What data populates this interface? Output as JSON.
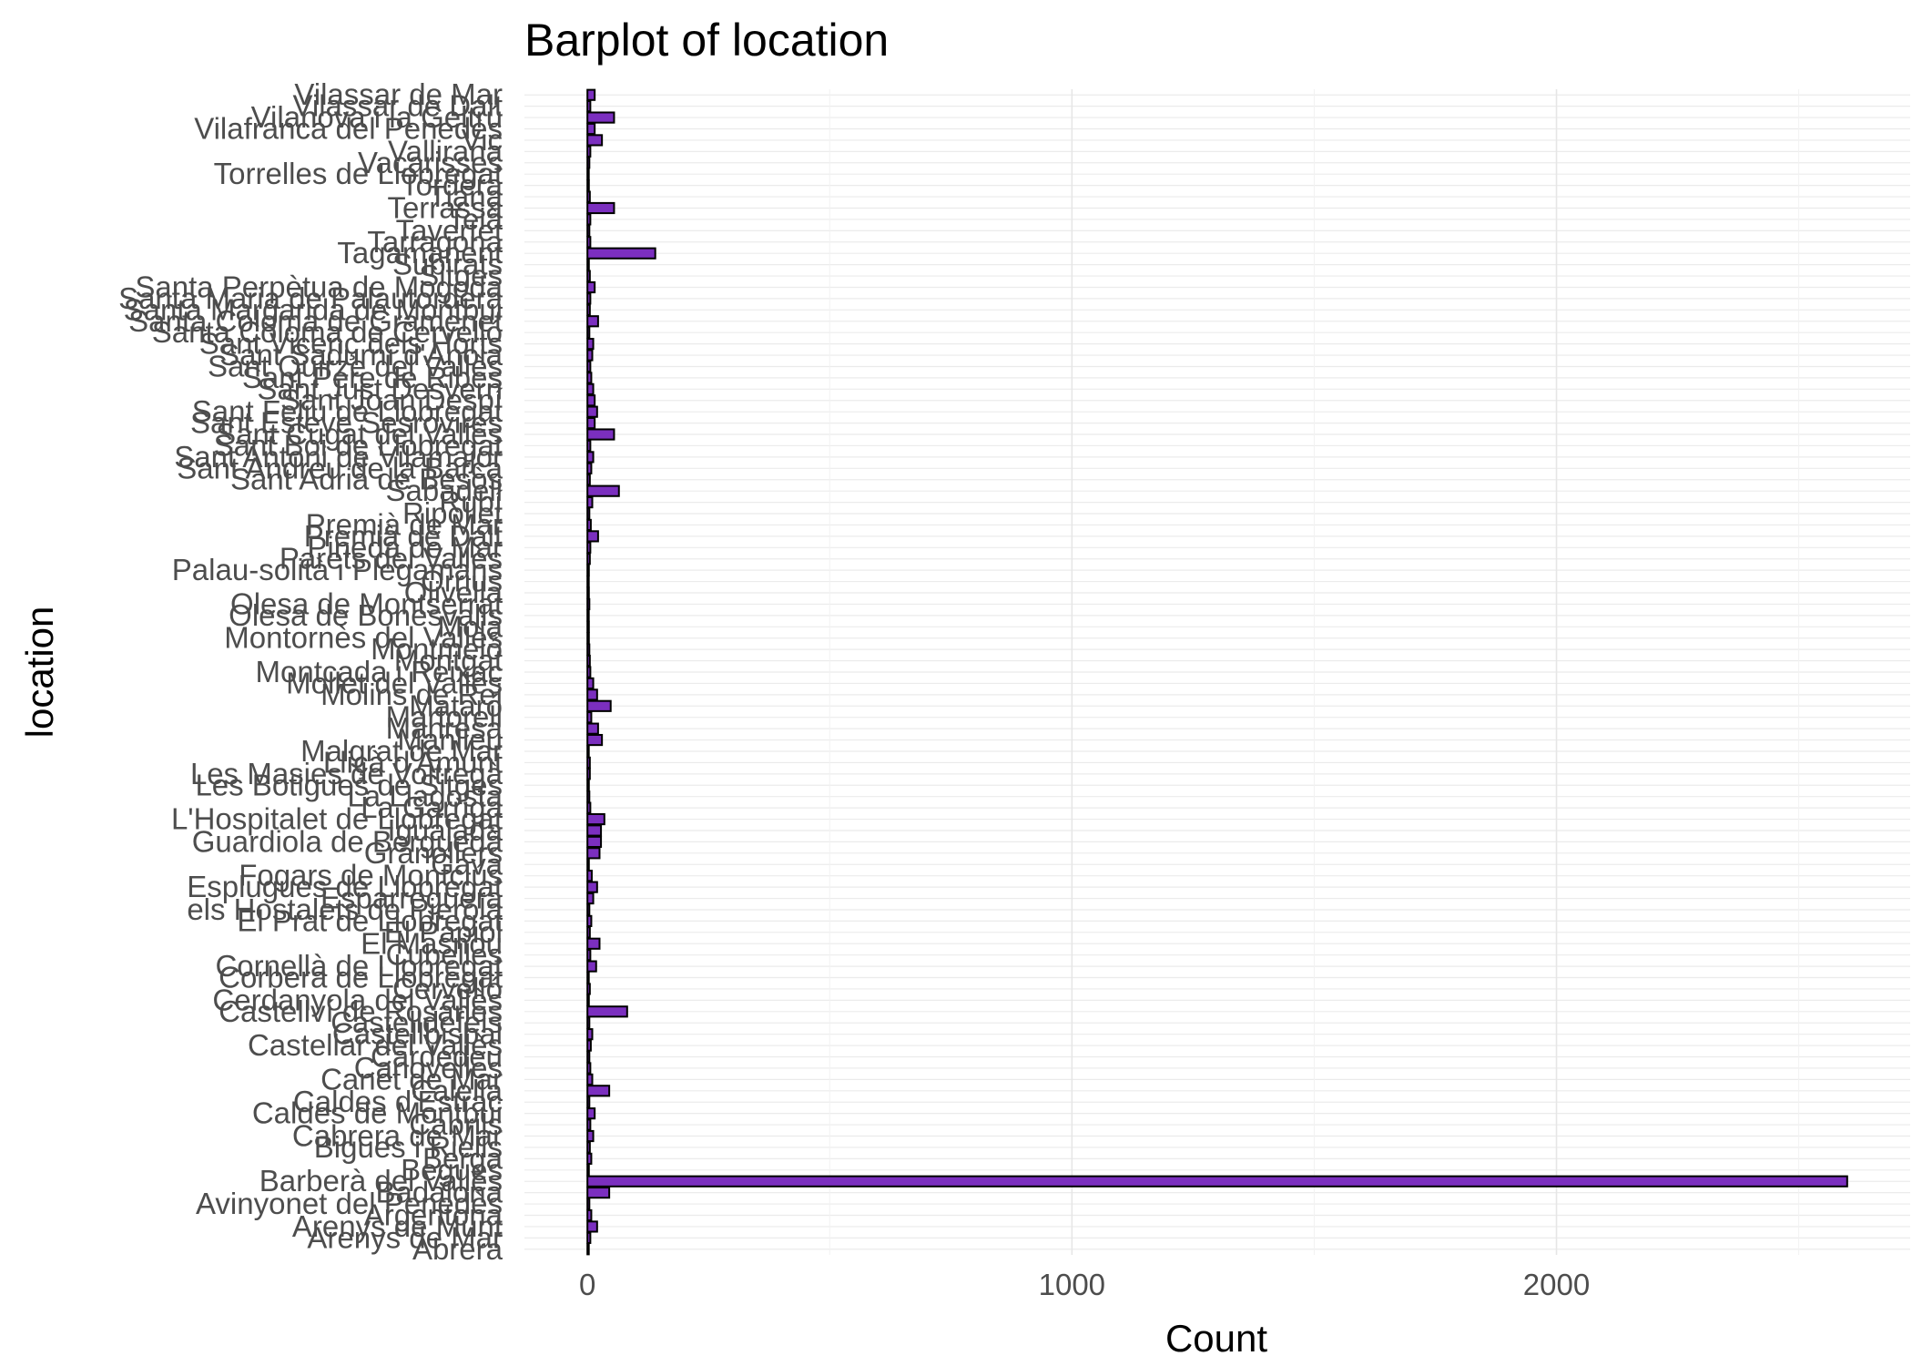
{
  "chart_data": {
    "type": "bar",
    "orientation": "horizontal",
    "title": "Barplot of location",
    "xlabel": "Count",
    "ylabel": "location",
    "xlim": [
      -130,
      2730
    ],
    "x_ticks": [
      0,
      1000,
      2000
    ],
    "x_tick_labels": [
      "0",
      "1000",
      "2000"
    ],
    "grid": true,
    "bar_fill": "#7b2fbf",
    "bar_outline": "#000000",
    "categories": [
      "Abrera",
      "Arenys de Mar",
      "Arenys de Munt",
      "Argentona",
      "Avinyonet del Penedès",
      "Badalona",
      "Barberà del Vallès",
      "Begues",
      "Berga",
      "Bigues i Riells",
      "Cabrera de Mar",
      "Cabrils",
      "Caldes de Montbui",
      "Caldes d'Estrac",
      "Calella",
      "Canet de Mar",
      "Canovelles",
      "Cardedeu",
      "Castellar del Vallès",
      "Castellbisbal",
      "Castelldefels",
      "Castellví de Rosanes",
      "Cerdanyola del Vallès",
      "Cervelló",
      "Corbera de Llobregat",
      "Cornellà de Llobregat",
      "Cubelles",
      "El Masnou",
      "El Papiol",
      "El Prat de Llobregat",
      "els Hostalets de Pierola",
      "Esparreguera",
      "Esplugues de Llobregat",
      "Fogars de Montclús",
      "Gavà",
      "Granollers",
      "Guardiola de Berguedà",
      "Igualada",
      "L'Hospitalet de Llobregat",
      "La Garriga",
      "La Llagosta",
      "Les Botigues de Sitges",
      "Les Masies de Voltregà",
      "Lliçà d'Amunt",
      "Malgrat de Mar",
      "Manlleu",
      "Manresa",
      "Martorell",
      "Mataró",
      "Molins de Rei",
      "Mollet del Vallès",
      "Montcada i Reixac",
      "Montgat",
      "Montmeló",
      "Montornès del Vallès",
      "Moià",
      "Olesa de Bonesvalls",
      "Olesa de Montserrat",
      "Olivella",
      "Òrrius",
      "Palau-solità i Plegamans",
      "Parets del Vallès",
      "Pineda de Mar",
      "Premià de Dalt",
      "Premià de Mar",
      "Ripollet",
      "Rubí",
      "Sabadell",
      "Sant Adrià de Besòs",
      "Sant Andreu de la Barca",
      "Sant Antoni de Vilamajor",
      "Sant Boi de Llobregat",
      "Sant Cugat del Vallès",
      "Sant Esteve Sesrovires",
      "Sant Feliu de Llobregat",
      "Sant Joan Despí",
      "Sant Just Desvern",
      "Sant Pere de Ribes",
      "Sant Quirze del Vallès",
      "Sant Sadurní d'Anoia",
      "Sant Vicenç dels Horts",
      "Santa Coloma de Cervelló",
      "Santa Coloma de Gramenet",
      "Santa Margarida de Montbui",
      "Santa Maria de Palautordera",
      "Santa Perpètua de Mogoda",
      "Sitges",
      "Subirats",
      "Tagamanent",
      "Tarragona",
      "Tavertet",
      "Teià",
      "Terrassa",
      "Tiana",
      "Tordera",
      "Torrelles de Llobregat",
      "Vacarisses",
      "Vallirana",
      "Vic",
      "Vilafranca del Penedès",
      "Vilanova i la Geltrú",
      "Vilassar de Dalt",
      "Vilassar de Mar"
    ],
    "values": [
      2,
      6,
      20,
      8,
      4,
      45,
      2600,
      3,
      8,
      5,
      12,
      6,
      15,
      4,
      45,
      10,
      6,
      4,
      7,
      10,
      4,
      82,
      3,
      5,
      2,
      18,
      6,
      25,
      5,
      8,
      4,
      12,
      20,
      9,
      3,
      25,
      28,
      28,
      35,
      6,
      4,
      3,
      5,
      5,
      2,
      30,
      22,
      8,
      48,
      20,
      12,
      6,
      5,
      4,
      3,
      3,
      2,
      4,
      3,
      2,
      3,
      5,
      6,
      22,
      7,
      4,
      10,
      65,
      5,
      8,
      12,
      6,
      55,
      15,
      20,
      15,
      12,
      8,
      6,
      10,
      12,
      4,
      22,
      5,
      6,
      15,
      5,
      3,
      140,
      6,
      4,
      6,
      55,
      5,
      3,
      2,
      4,
      6,
      30,
      15,
      55,
      6,
      15
    ]
  }
}
